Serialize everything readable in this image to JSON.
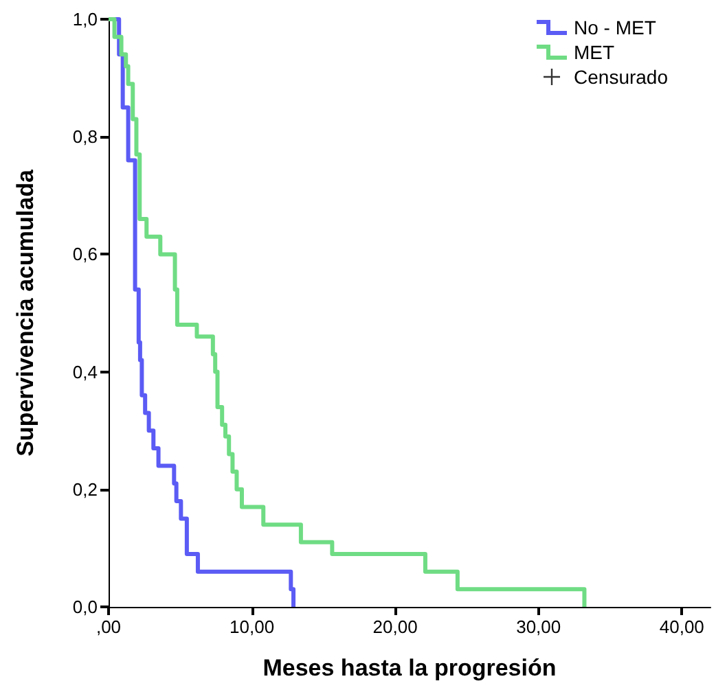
{
  "chart_data": {
    "type": "step",
    "xlabel": "Meses hasta la progresión",
    "ylabel": "Supervivencia acumulada",
    "xlim": [
      0,
      42
    ],
    "xticks": [
      {
        "value": 0,
        "label": ",00"
      },
      {
        "value": 10,
        "label": "10,00"
      },
      {
        "value": 20,
        "label": "20,00"
      },
      {
        "value": 30,
        "label": "30,00"
      },
      {
        "value": 40,
        "label": "40,00"
      }
    ],
    "ylim": [
      0,
      1
    ],
    "yticks": [
      {
        "value": 0,
        "label": "0,0"
      },
      {
        "value": 0.2,
        "label": "0,2"
      },
      {
        "value": 0.4,
        "label": "0,4"
      },
      {
        "value": 0.6,
        "label": "0,6"
      },
      {
        "value": 0.8,
        "label": "0,8"
      },
      {
        "value": 1,
        "label": "1,0"
      }
    ],
    "grid": false,
    "legend": "top right",
    "marker": "none",
    "line_style": "solid",
    "series": [
      {
        "name": "No - MET",
        "color": "#5b5bf5",
        "x": [
          0,
          0.73,
          0.99,
          1.37,
          1.85,
          2.1,
          2.2,
          2.32,
          2.55,
          2.81,
          3.13,
          3.48,
          4.57,
          4.73,
          5.05,
          5.46,
          6.23,
          12.72,
          12.9
        ],
        "values": [
          1,
          0.94,
          0.85,
          0.76,
          0.54,
          0.45,
          0.42,
          0.36,
          0.33,
          0.3,
          0.27,
          0.24,
          0.21,
          0.18,
          0.15,
          0.09,
          0.06,
          0.03,
          0
        ]
      },
      {
        "name": "MET",
        "color": "#6fdc84",
        "x": [
          0,
          0.41,
          0.89,
          1.21,
          1.37,
          1.69,
          1.94,
          2.17,
          2.65,
          3.61,
          4.63,
          4.79,
          6.16,
          7.28,
          7.44,
          7.6,
          7.92,
          8.15,
          8.4,
          8.65,
          8.94,
          9.3,
          10.8,
          13.42,
          15.6,
          22.1,
          24.35,
          33.2
        ],
        "values": [
          1,
          0.97,
          0.94,
          0.92,
          0.89,
          0.83,
          0.77,
          0.66,
          0.63,
          0.6,
          0.54,
          0.48,
          0.46,
          0.43,
          0.4,
          0.34,
          0.31,
          0.29,
          0.26,
          0.23,
          0.2,
          0.17,
          0.14,
          0.11,
          0.09,
          0.06,
          0.03,
          0
        ]
      },
      {
        "name": "Censurado",
        "type": "scatter",
        "marker": "cross",
        "color": "#000000"
      }
    ]
  }
}
